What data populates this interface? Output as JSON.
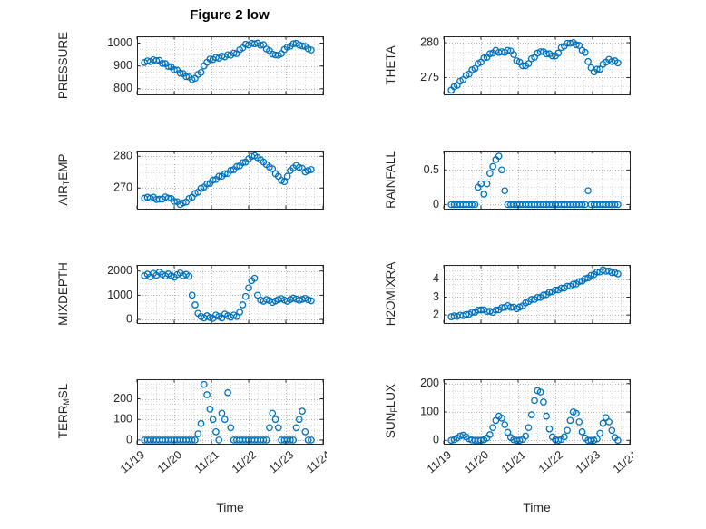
{
  "chart_data": {
    "type": "scatter",
    "title": "Figure 2 low",
    "xlabel": "Time",
    "x_tick_labels": [
      "11/19",
      "11/20",
      "11/21",
      "11/22",
      "11/23",
      "11/24"
    ],
    "x_tick_values": [
      0,
      1,
      2,
      3,
      4,
      5
    ],
    "xlim": [
      0,
      5
    ],
    "x_minor_step": 0.25,
    "x_unit": "days since 11/19",
    "marker": {
      "shape": "open-circle",
      "color": "#0072BD",
      "radius": 3.2
    },
    "grid": {
      "major": true,
      "minor": true,
      "line_style": "dotted"
    },
    "time_days": [
      0.2,
      0.28,
      0.36,
      0.44,
      0.52,
      0.6,
      0.68,
      0.76,
      0.84,
      0.92,
      1.0,
      1.08,
      1.16,
      1.24,
      1.32,
      1.4,
      1.48,
      1.56,
      1.64,
      1.72,
      1.8,
      1.88,
      1.96,
      2.04,
      2.12,
      2.2,
      2.28,
      2.36,
      2.44,
      2.52,
      2.6,
      2.68,
      2.76,
      2.84,
      2.92,
      3.0,
      3.08,
      3.16,
      3.24,
      3.32,
      3.4,
      3.48,
      3.56,
      3.64,
      3.72,
      3.8,
      3.88,
      3.96,
      4.04,
      4.12,
      4.2,
      4.28,
      4.36,
      4.44,
      4.52,
      4.6,
      4.68
    ],
    "subplots": [
      {
        "name": "PRESSURE",
        "ylabel_parts": [
          {
            "text": "PRESSURE"
          }
        ],
        "yticks": [
          800,
          900,
          1000
        ],
        "ytick_labels": [
          "800",
          "900",
          "1000"
        ],
        "ylim": [
          775,
          1030
        ],
        "values": [
          915,
          922,
          919,
          927,
          923,
          924,
          911,
          910,
          898,
          896,
          883,
          881,
          868,
          866,
          853,
          851,
          840,
          845,
          863,
          871,
          900,
          916,
          930,
          928,
          937,
          934,
          943,
          940,
          949,
          947,
          956,
          954,
          971,
          979,
          995,
          992,
          999,
          997,
          1000,
          991,
          993,
          974,
          967,
          952,
          948,
          947,
          954,
          972,
          983,
          987,
          997,
          999,
          992,
          988,
          986,
          975,
          970
        ]
      },
      {
        "name": "THETA",
        "ylabel_parts": [
          {
            "text": "THETA"
          }
        ],
        "yticks": [
          275,
          280
        ],
        "ytick_labels": [
          "275",
          "280"
        ],
        "ylim": [
          272.6,
          280.9
        ],
        "values": [
          273.2,
          273.7,
          273.9,
          274.5,
          274.7,
          275.3,
          275.5,
          276.1,
          276.3,
          277.0,
          277.2,
          277.8,
          277.9,
          278.4,
          278.5,
          278.9,
          278.6,
          278.7,
          278.6,
          278.9,
          278.8,
          278.3,
          277.4,
          277.2,
          276.7,
          276.7,
          277.0,
          277.7,
          277.9,
          278.5,
          278.7,
          278.7,
          278.4,
          278.4,
          278.1,
          278.1,
          278.5,
          279.3,
          279.5,
          279.9,
          279.9,
          280.0,
          279.7,
          279.6,
          278.9,
          278.6,
          277.3,
          276.4,
          275.8,
          276.2,
          276.2,
          276.9,
          277.2,
          277.6,
          277.3,
          277.4,
          277.1
        ]
      },
      {
        "name": "AIR_TEMP",
        "ylabel_parts": [
          {
            "text": "AIR"
          },
          {
            "text": "T",
            "sub": true
          },
          {
            "text": "EMP"
          }
        ],
        "yticks": [
          270,
          280
        ],
        "ytick_labels": [
          "270",
          "280"
        ],
        "ylim": [
          263.5,
          281.8
        ],
        "values": [
          266.8,
          267.1,
          266.8,
          267.1,
          266.4,
          266.5,
          266.5,
          267.2,
          266.8,
          266.7,
          265.8,
          265.7,
          264.8,
          265.3,
          265.6,
          266.7,
          267.1,
          268.3,
          268.7,
          269.9,
          270.3,
          271.3,
          271.5,
          272.5,
          272.7,
          273.7,
          273.7,
          274.5,
          274.6,
          275.6,
          275.8,
          276.8,
          277.0,
          278.0,
          278.2,
          279.2,
          280.0,
          280.2,
          279.6,
          278.9,
          278.2,
          277.4,
          276.6,
          276.1,
          274.5,
          273.7,
          272.4,
          272.0,
          273.7,
          275.5,
          276.3,
          277.1,
          276.5,
          276.2,
          275.1,
          275.5,
          275.8
        ]
      },
      {
        "name": "RAINFALL",
        "ylabel_parts": [
          {
            "text": "RAINFALL"
          }
        ],
        "yticks": [
          0,
          0.5
        ],
        "ytick_labels": [
          "0",
          "0.5"
        ],
        "ylim": [
          -0.06,
          0.78
        ],
        "values": [
          0,
          0,
          0,
          0,
          0,
          0,
          0,
          0,
          0,
          0.25,
          0.3,
          0.15,
          0.3,
          0.45,
          0.55,
          0.65,
          0.7,
          0.5,
          0.2,
          0,
          0,
          0,
          0,
          0,
          0,
          0,
          0,
          0,
          0,
          0,
          0,
          0,
          0,
          0,
          0,
          0,
          0,
          0,
          0,
          0,
          0,
          0,
          0,
          0,
          0,
          0,
          0.2,
          0,
          0,
          0,
          0,
          0,
          0,
          0,
          0,
          0,
          0
        ]
      },
      {
        "name": "MIXDEPTH",
        "ylabel_parts": [
          {
            "text": "MIXDEPTH"
          }
        ],
        "yticks": [
          0,
          1000,
          2000
        ],
        "ytick_labels": [
          "0",
          "1000",
          "2000"
        ],
        "ylim": [
          -150,
          2250
        ],
        "values": [
          1800,
          1870,
          1760,
          1900,
          1820,
          1950,
          1860,
          1790,
          1880,
          1800,
          1740,
          1850,
          1920,
          1800,
          1860,
          1780,
          1000,
          600,
          250,
          120,
          60,
          150,
          80,
          40,
          180,
          120,
          60,
          220,
          150,
          90,
          180,
          120,
          300,
          600,
          950,
          1300,
          1600,
          1700,
          1000,
          800,
          750,
          820,
          780,
          700,
          760,
          820,
          860,
          800,
          750,
          820,
          880,
          840,
          790,
          830,
          870,
          810,
          770
        ]
      },
      {
        "name": "H2OMIXRA",
        "ylabel_parts": [
          {
            "text": "H2OMIXRA"
          }
        ],
        "yticks": [
          2,
          3,
          4
        ],
        "ytick_labels": [
          "2",
          "3",
          "4"
        ],
        "ylim": [
          1.55,
          4.8
        ],
        "values": [
          1.9,
          1.95,
          1.92,
          1.99,
          1.96,
          2.03,
          2.04,
          2.15,
          2.16,
          2.27,
          2.28,
          2.29,
          2.2,
          2.21,
          2.15,
          2.27,
          2.29,
          2.41,
          2.43,
          2.52,
          2.43,
          2.44,
          2.35,
          2.44,
          2.51,
          2.68,
          2.75,
          2.87,
          2.87,
          2.98,
          2.98,
          3.11,
          3.14,
          3.27,
          3.3,
          3.4,
          3.4,
          3.5,
          3.51,
          3.61,
          3.61,
          3.72,
          3.74,
          3.87,
          3.9,
          4.03,
          4.07,
          4.22,
          4.26,
          4.4,
          4.41,
          4.52,
          4.45,
          4.46,
          4.37,
          4.37,
          4.3
        ]
      },
      {
        "name": "TERR_MSL",
        "ylabel_parts": [
          {
            "text": "TERR"
          },
          {
            "text": "M",
            "sub": true
          },
          {
            "text": "SL"
          }
        ],
        "yticks": [
          0,
          100,
          200
        ],
        "ytick_labels": [
          "0",
          "100",
          "200"
        ],
        "ylim": [
          -18,
          295
        ],
        "values": [
          0,
          0,
          0,
          0,
          0,
          0,
          0,
          0,
          0,
          0,
          0,
          0,
          0,
          0,
          0,
          0,
          0,
          0,
          30,
          80,
          270,
          220,
          150,
          100,
          40,
          0,
          130,
          100,
          230,
          60,
          0,
          0,
          0,
          0,
          0,
          0,
          0,
          0,
          0,
          0,
          0,
          0,
          60,
          130,
          100,
          60,
          0,
          0,
          0,
          0,
          0,
          60,
          100,
          140,
          40,
          0,
          0
        ]
      },
      {
        "name": "SUN_FLUX",
        "ylabel_parts": [
          {
            "text": "SUN"
          },
          {
            "text": "F",
            "sub": true
          },
          {
            "text": "LUX"
          }
        ],
        "yticks": [
          0,
          100,
          200
        ],
        "ytick_labels": [
          "0",
          "100",
          "200"
        ],
        "ylim": [
          -12,
          215
        ],
        "values": [
          0,
          2,
          8,
          15,
          18,
          12,
          5,
          1,
          0,
          0,
          0,
          2,
          8,
          20,
          45,
          70,
          85,
          78,
          55,
          28,
          10,
          2,
          0,
          0,
          3,
          15,
          45,
          90,
          140,
          175,
          170,
          135,
          85,
          40,
          12,
          2,
          0,
          3,
          12,
          35,
          70,
          100,
          95,
          65,
          30,
          8,
          0,
          0,
          0,
          5,
          25,
          60,
          80,
          65,
          35,
          10,
          0
        ]
      }
    ]
  }
}
